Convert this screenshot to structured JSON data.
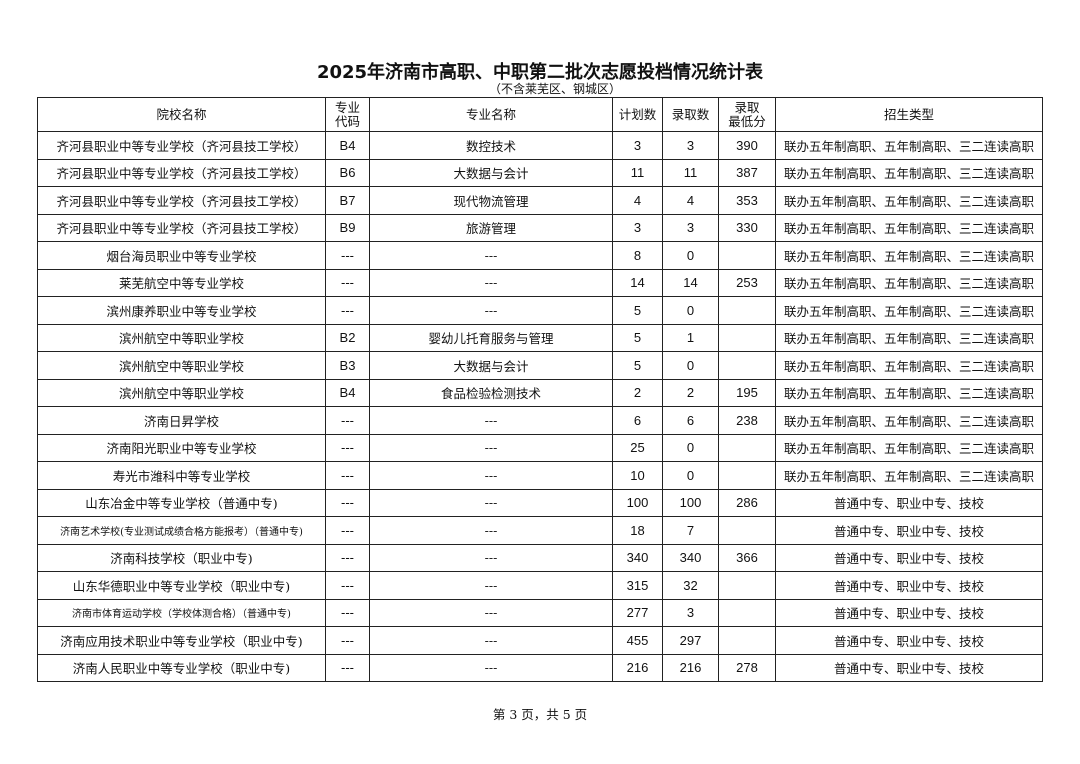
{
  "title": "2025年济南市高职、中职第二批次志愿投档情况统计表",
  "subtitle": "（不含莱芜区、钢城区）",
  "columns": [
    "院校名称",
    "专业\n代码",
    "专业名称",
    "计划数",
    "录取数",
    "录取\n最低分",
    "招生类型"
  ],
  "rows": [
    [
      "齐河县职业中等专业学校（齐河县技工学校）",
      "B4",
      "数控技术",
      "3",
      "3",
      "390",
      "联办五年制高职、五年制高职、三二连读高职"
    ],
    [
      "齐河县职业中等专业学校（齐河县技工学校）",
      "B6",
      "大数据与会计",
      "11",
      "11",
      "387",
      "联办五年制高职、五年制高职、三二连读高职"
    ],
    [
      "齐河县职业中等专业学校（齐河县技工学校）",
      "B7",
      "现代物流管理",
      "4",
      "4",
      "353",
      "联办五年制高职、五年制高职、三二连读高职"
    ],
    [
      "齐河县职业中等专业学校（齐河县技工学校）",
      "B9",
      "旅游管理",
      "3",
      "3",
      "330",
      "联办五年制高职、五年制高职、三二连读高职"
    ],
    [
      "烟台海员职业中等专业学校",
      "---",
      "---",
      "8",
      "0",
      "",
      "联办五年制高职、五年制高职、三二连读高职"
    ],
    [
      "莱芜航空中等专业学校",
      "---",
      "---",
      "14",
      "14",
      "253",
      "联办五年制高职、五年制高职、三二连读高职"
    ],
    [
      "滨州康养职业中等专业学校",
      "---",
      "---",
      "5",
      "0",
      "",
      "联办五年制高职、五年制高职、三二连读高职"
    ],
    [
      "滨州航空中等职业学校",
      "B2",
      "婴幼儿托育服务与管理",
      "5",
      "1",
      "",
      "联办五年制高职、五年制高职、三二连读高职"
    ],
    [
      "滨州航空中等职业学校",
      "B3",
      "大数据与会计",
      "5",
      "0",
      "",
      "联办五年制高职、五年制高职、三二连读高职"
    ],
    [
      "滨州航空中等职业学校",
      "B4",
      "食品检验检测技术",
      "2",
      "2",
      "195",
      "联办五年制高职、五年制高职、三二连读高职"
    ],
    [
      "济南日昇学校",
      "---",
      "---",
      "6",
      "6",
      "238",
      "联办五年制高职、五年制高职、三二连读高职"
    ],
    [
      "济南阳光职业中等专业学校",
      "---",
      "---",
      "25",
      "0",
      "",
      "联办五年制高职、五年制高职、三二连读高职"
    ],
    [
      "寿光市潍科中等专业学校",
      "---",
      "---",
      "10",
      "0",
      "",
      "联办五年制高职、五年制高职、三二连读高职"
    ],
    [
      "山东冶金中等专业学校（普通中专)",
      "---",
      "---",
      "100",
      "100",
      "286",
      "普通中专、职业中专、技校"
    ],
    [
      "济南艺术学校(专业测试成绩合格方能报考）（普通中专)",
      "---",
      "---",
      "18",
      "7",
      "",
      "普通中专、职业中专、技校"
    ],
    [
      "济南科技学校（职业中专)",
      "---",
      "---",
      "340",
      "340",
      "366",
      "普通中专、职业中专、技校"
    ],
    [
      "山东华德职业中等专业学校（职业中专)",
      "---",
      "---",
      "315",
      "32",
      "",
      "普通中专、职业中专、技校"
    ],
    [
      "济南市体育运动学校（学校体测合格）（普通中专)",
      "---",
      "---",
      "277",
      "3",
      "",
      "普通中专、职业中专、技校"
    ],
    [
      "济南应用技术职业中等专业学校（职业中专)",
      "---",
      "---",
      "455",
      "297",
      "",
      "普通中专、职业中专、技校"
    ],
    [
      "济南人民职业中等专业学校（职业中专)",
      "---",
      "---",
      "216",
      "216",
      "278",
      "普通中专、职业中专、技校"
    ]
  ],
  "footer": "第 3 页，共 5 页"
}
